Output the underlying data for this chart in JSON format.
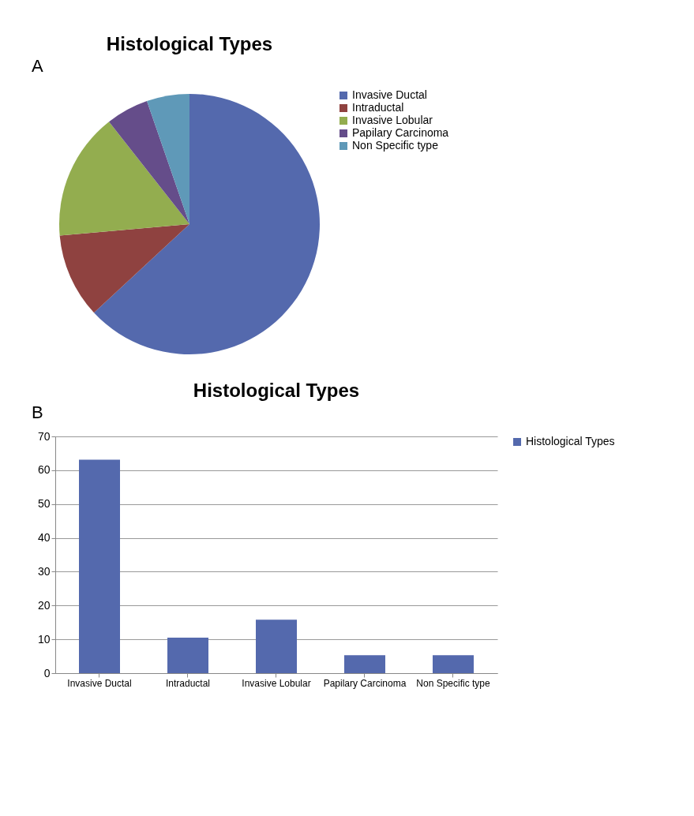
{
  "chart_data": [
    {
      "type": "pie",
      "title": "Histological Types",
      "annotations": [
        "A"
      ],
      "legend": "right",
      "categories": [
        "Invasive Ductal",
        "Intraductal",
        "Invasive Lobular",
        "Papilary Carcinoma",
        "Non Specific type"
      ],
      "values": [
        63.1,
        10.5,
        15.8,
        5.3,
        5.3
      ],
      "colors": [
        "#5469ad",
        "#8f4240",
        "#93ad4f",
        "#654d8a",
        "#5f99b8"
      ]
    },
    {
      "type": "bar",
      "title": "Histological Types",
      "annotations": [
        "B"
      ],
      "legend": "right",
      "grid": "y",
      "categories": [
        "Invasive Ductal",
        "Intraductal",
        "Invasive Lobular",
        "Papilary Carcinoma",
        "Non Specific type"
      ],
      "series": [
        {
          "name": "Histological Types",
          "color": "#5469ad",
          "values": [
            63.1,
            10.5,
            15.8,
            5.3,
            5.3
          ]
        }
      ],
      "ylim": [
        0,
        70
      ],
      "yticks": [
        0,
        10,
        20,
        30,
        40,
        50,
        60,
        70
      ]
    }
  ]
}
